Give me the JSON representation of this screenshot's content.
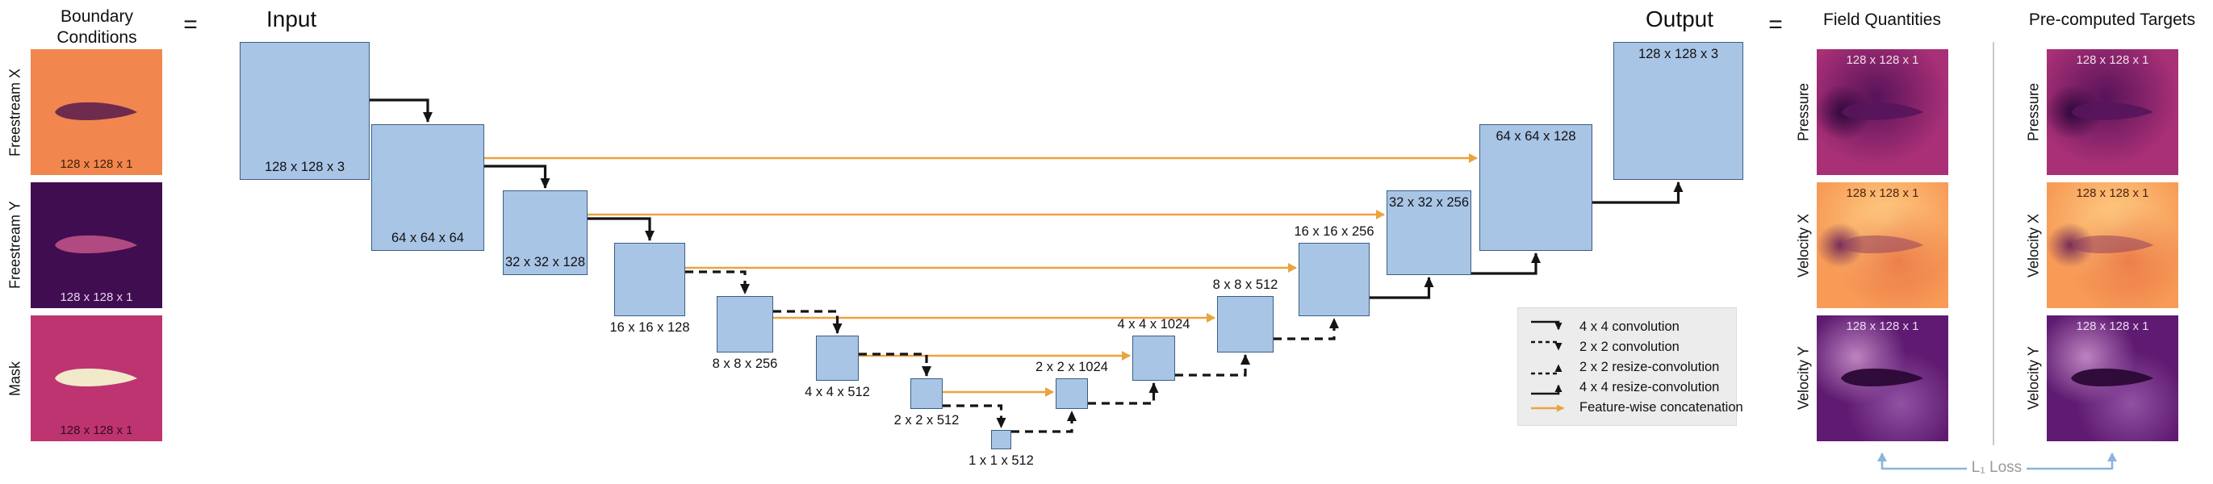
{
  "boundary": {
    "title": "Boundary Conditions",
    "equals": "=",
    "items": [
      {
        "label": "Freestream X",
        "size": "128 x 128 x 1",
        "type": "freestream-x"
      },
      {
        "label": "Freestream Y",
        "size": "128 x 128 x 1",
        "type": "freestream-y"
      },
      {
        "label": "Mask",
        "size": "128 x 128 x 1",
        "type": "mask"
      }
    ]
  },
  "unet": {
    "input_label": "Input",
    "output_label": "Output",
    "boxes": [
      "128 x 128 x 3",
      "64 x 64 x 64",
      "32 x 32 x 128",
      "16 x 16 x 128",
      "8 x 8 x 256",
      "4 x 4 x 512",
      "2 x 2 x 512",
      "1 x 1 x 512",
      "2 x 2 x 1024",
      "4 x 4 x 1024",
      "8 x 8 x 512",
      "16 x 16 x 256",
      "32 x 32 x 256",
      "64 x 64 x 128",
      "128 x 128 x 3"
    ]
  },
  "outputs": {
    "equals": "=",
    "field_quantities": {
      "title": "Field Quantities",
      "items": [
        {
          "label": "Pressure",
          "size": "128 x 128 x 1",
          "type": "pressure"
        },
        {
          "label": "Velocity X",
          "size": "128 x 128 x 1",
          "type": "velocity-x"
        },
        {
          "label": "Velocity Y",
          "size": "128 x 128 x 1",
          "type": "velocity-y"
        }
      ]
    },
    "targets": {
      "title": "Pre-computed Targets",
      "items": [
        {
          "label": "Pressure",
          "size": "128 x 128 x 1",
          "type": "pressure"
        },
        {
          "label": "Velocity X",
          "size": "128 x 128 x 1",
          "type": "velocity-x"
        },
        {
          "label": "Velocity Y",
          "size": "128 x 128 x 1",
          "type": "velocity-y"
        }
      ]
    }
  },
  "legend": {
    "items": [
      {
        "type": "conv-4x4",
        "label": "4 x 4 convolution"
      },
      {
        "type": "conv-2x2",
        "label": "2 x 2 convolution"
      },
      {
        "type": "resize-conv-2x2",
        "label": "2 x 2 resize-convolution"
      },
      {
        "type": "resize-conv-4x4",
        "label": "4 x 4 resize-convolution"
      },
      {
        "type": "concat",
        "label": "Feature-wise concatenation"
      }
    ]
  },
  "loss": {
    "label": "L₁ Loss"
  },
  "colors": {
    "box_fill": "#A9C5E6",
    "box_border": "#3A5E84",
    "arrow": "#141414",
    "skip": "#ECA33E",
    "loss": "#8AB4DD",
    "legend_bg": "#ECECEC",
    "divider": "#C9C9C9"
  }
}
